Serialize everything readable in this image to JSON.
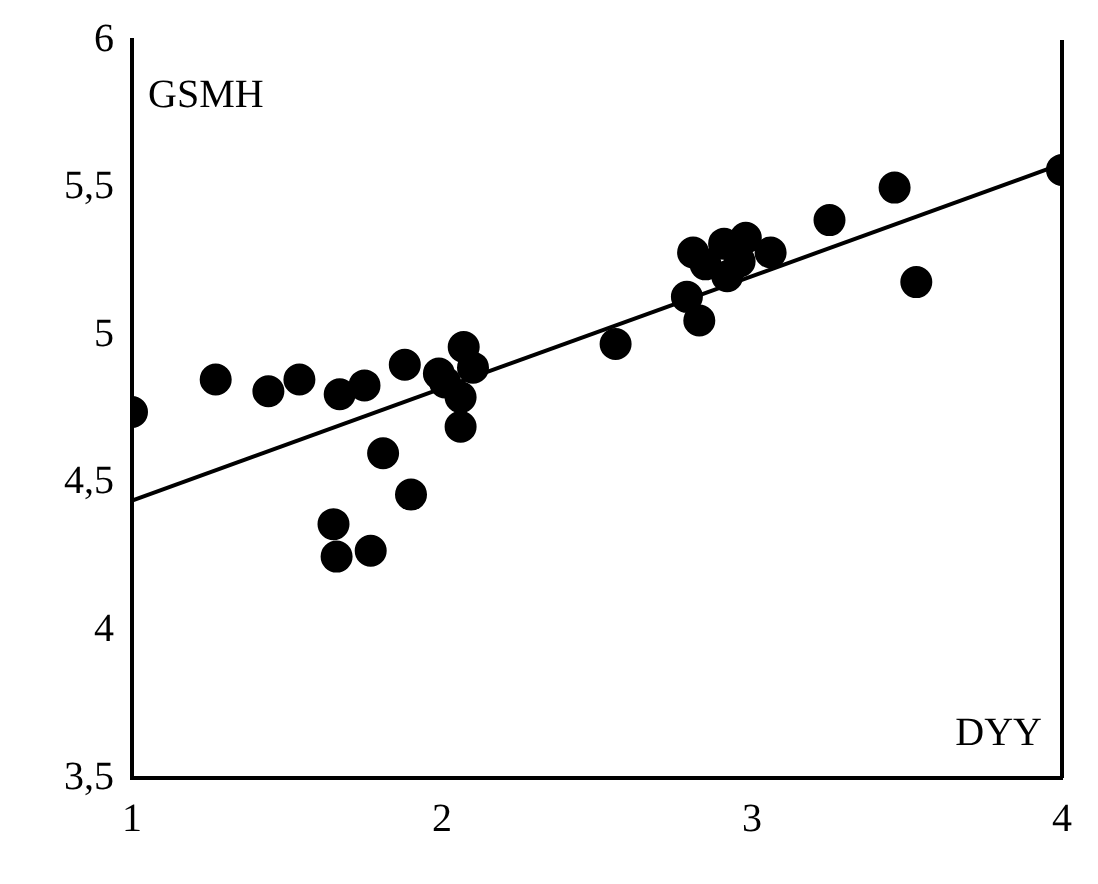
{
  "chart_data": {
    "type": "scatter",
    "xlabel": "DYY",
    "ylabel": "GSMH",
    "series": [
      {
        "color": "#000000",
        "x": [
          1.0,
          1.27,
          1.44,
          1.54,
          1.67,
          1.75,
          1.88,
          1.99,
          2.01,
          2.07,
          2.1,
          2.06,
          2.06,
          1.81,
          1.9,
          1.65,
          1.66,
          1.77,
          2.56,
          2.83,
          2.79,
          2.81,
          2.91,
          2.98,
          3.06,
          2.85,
          2.92,
          2.96,
          3.25,
          3.46,
          3.53,
          4.0
        ],
        "values": [
          4.74,
          4.85,
          4.81,
          4.85,
          4.8,
          4.83,
          4.9,
          4.87,
          4.84,
          4.96,
          4.89,
          4.79,
          4.69,
          4.6,
          4.46,
          4.36,
          4.25,
          4.27,
          4.97,
          5.05,
          5.13,
          5.28,
          5.31,
          5.33,
          5.28,
          5.24,
          5.2,
          5.25,
          5.39,
          5.5,
          5.18,
          5.56
        ]
      },
      {
        "type": "line",
        "color": "#000000",
        "marker": "none",
        "x": [
          1,
          4
        ],
        "values": [
          4.44,
          5.58
        ]
      }
    ],
    "xlim": [
      1,
      4
    ],
    "xticks": [
      1,
      2,
      3,
      4
    ],
    "ylim": [
      3.5,
      6
    ],
    "yticks": [
      {
        "value": 3.5,
        "label": "3,5"
      },
      4,
      {
        "value": 4.5,
        "label": "4,5"
      },
      5,
      {
        "value": 5.5,
        "label": "5,5"
      },
      6
    ],
    "marker": "circle",
    "grid": false,
    "legend": false
  }
}
